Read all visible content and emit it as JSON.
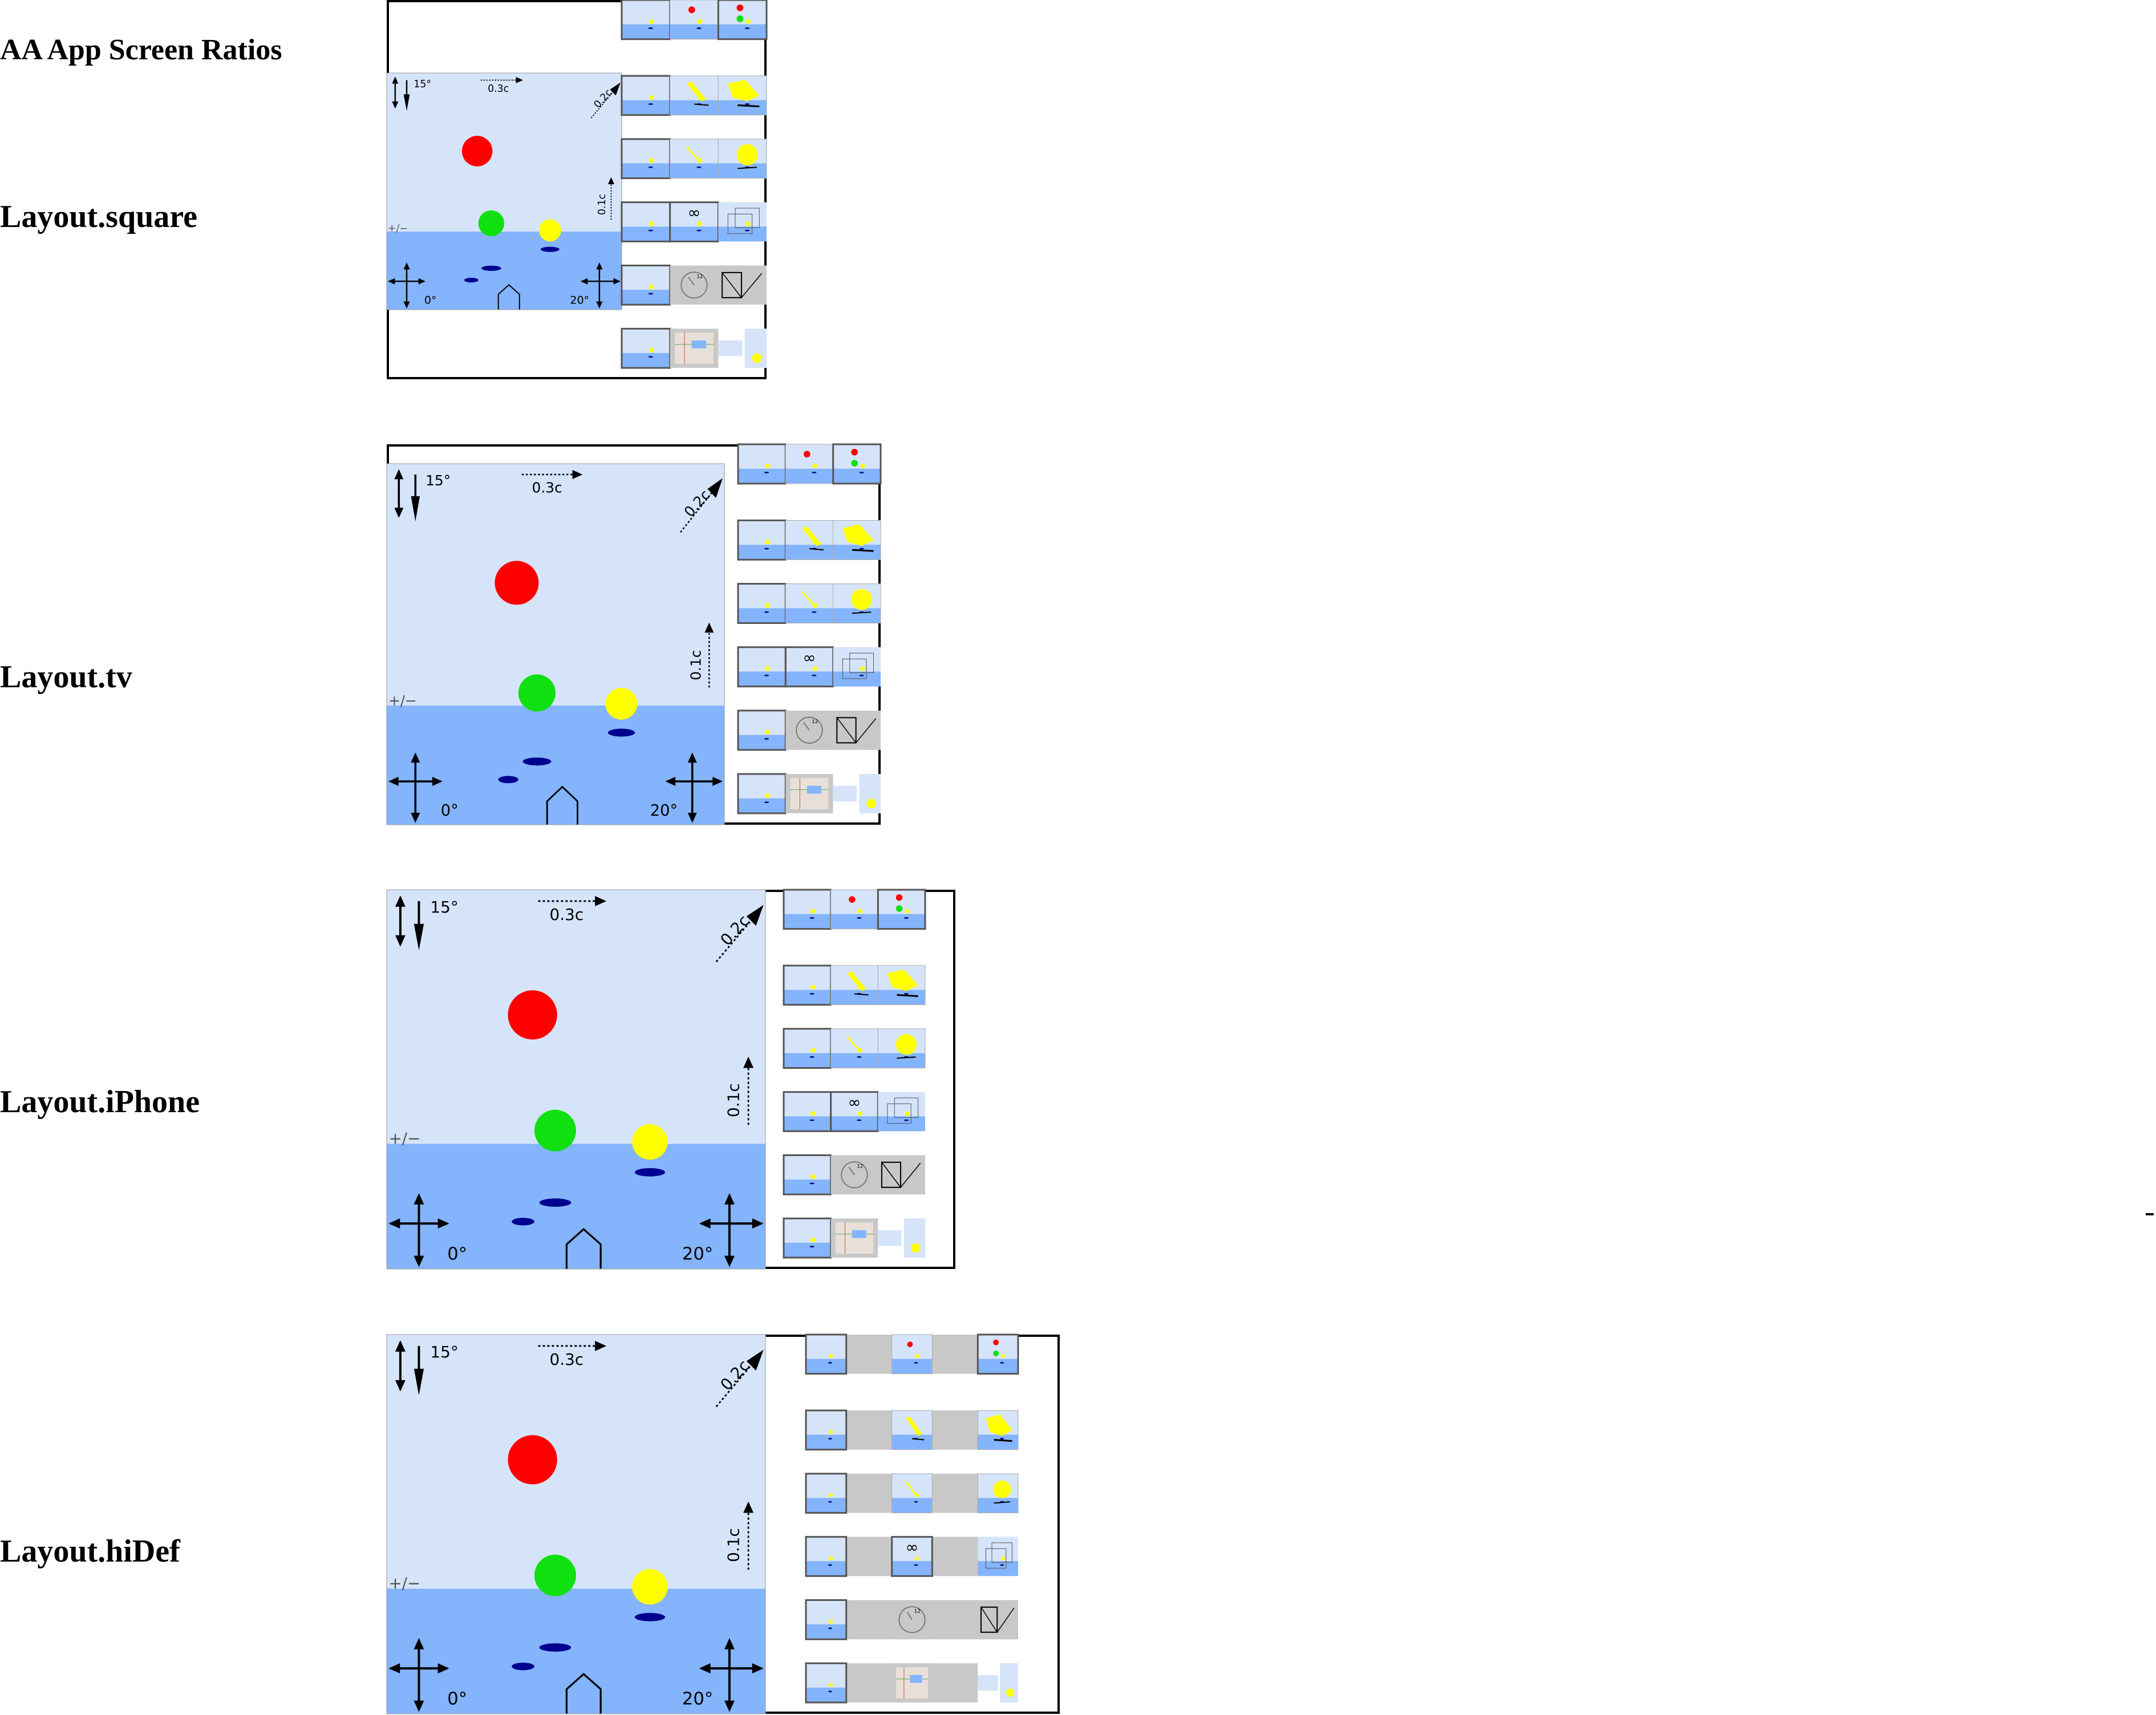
{
  "page": {
    "title": "AA App Screen Ratios"
  },
  "layouts": [
    {
      "name": "Layout.square",
      "variant": "square"
    },
    {
      "name": "Layout.tv",
      "variant": "tv"
    },
    {
      "name": "Layout.iPhone",
      "variant": "iphone"
    },
    {
      "name": "Layout.hiDef",
      "variant": "hidef"
    }
  ],
  "hud": {
    "pitch_label": "15°",
    "speed_top": "0.3c",
    "speed_diag": "0.2c",
    "speed_side": "0.1c",
    "plus_minus": "+/−",
    "heading_left": "0°",
    "heading_right": "20°"
  },
  "thumbs": {
    "row_count": 6,
    "cols_per_row": 3,
    "infinity_glyph": "∞",
    "clock_number": "12"
  },
  "colors": {
    "sky": "#d6e4fa",
    "ground": "#84b4fb",
    "red_ball": "#ff0000",
    "green_ball": "#10e010",
    "yellow_ball": "#ffff00",
    "shadow": "#000090",
    "gray_tile": "#c8c8c8",
    "frame": "#000000"
  }
}
